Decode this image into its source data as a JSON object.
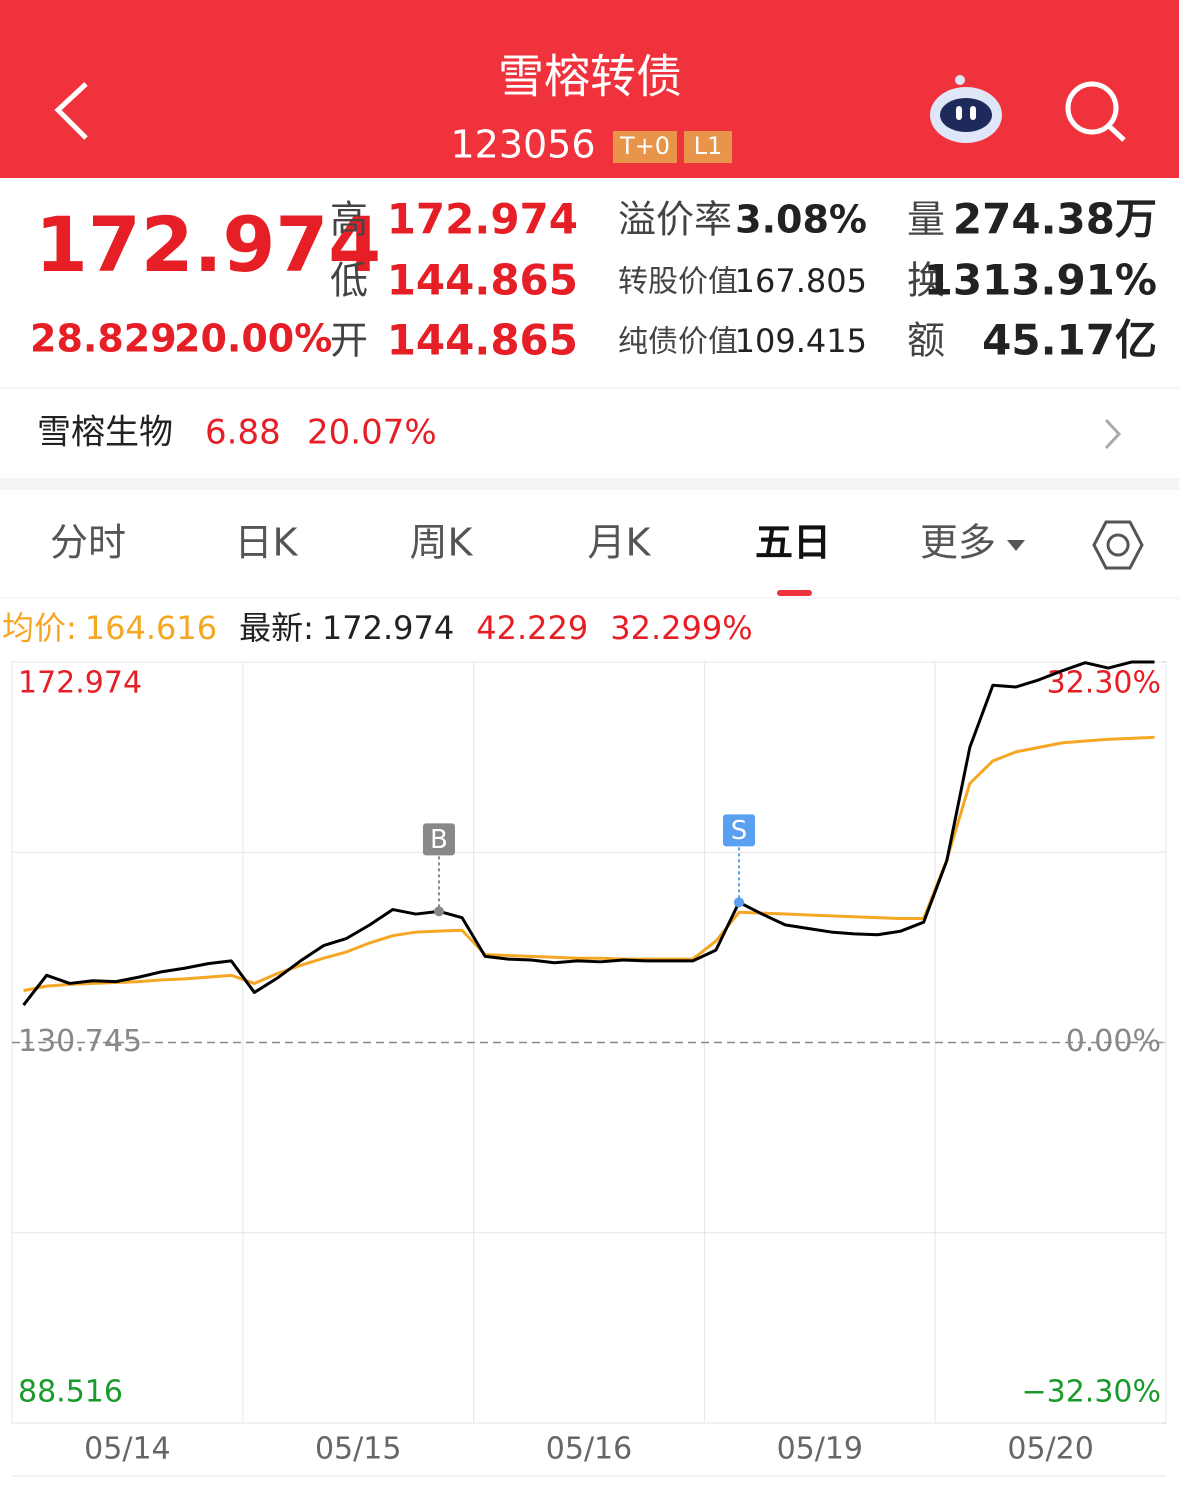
{
  "header": {
    "title": "雪榕转债",
    "code": "123056",
    "badges": [
      "T+0",
      "L1"
    ]
  },
  "quote": {
    "price": "172.974",
    "change": "28.829",
    "change_pct": "20.00%",
    "stats": [
      {
        "label": "高",
        "value": "172.974"
      },
      {
        "label": "低",
        "value": "144.865"
      },
      {
        "label": "开",
        "value": "144.865"
      }
    ],
    "metrics": [
      {
        "label": "溢价率",
        "value": "3.08%"
      },
      {
        "label": "转股价值",
        "value": "167.805"
      },
      {
        "label": "纯债价值",
        "value": "109.415"
      }
    ],
    "volume": [
      {
        "label": "量",
        "value": "274.38万"
      },
      {
        "label": "换",
        "value": "1313.91%"
      },
      {
        "label": "额",
        "value": "45.17亿"
      }
    ]
  },
  "stock": {
    "name": "雪榕生物",
    "price": "6.88",
    "change_pct": "20.07%"
  },
  "tabs": [
    "分时",
    "日K",
    "周K",
    "月K",
    "五日",
    "更多"
  ],
  "legend": {
    "avg_label": "均价:",
    "avg": "164.616",
    "latest_label": "最新:",
    "latest": "172.974",
    "change": "42.229",
    "change_pct": "32.299%"
  },
  "chart_data": {
    "type": "line",
    "categories": [
      null,
      null,
      null,
      null,
      null,
      "05/14",
      null,
      null,
      null,
      null,
      null,
      null,
      null,
      null,
      null,
      "05/15",
      null,
      null,
      null,
      null,
      null,
      null,
      null,
      null,
      null,
      "05/16",
      null,
      null,
      null,
      null,
      null,
      null,
      null,
      null,
      null,
      "05/19",
      null,
      null,
      null,
      null,
      null,
      null,
      null,
      null,
      null,
      "05/20",
      null,
      null,
      null,
      null
    ],
    "series": [
      {
        "color": "#000000",
        "values": [
          134.9,
          138.2,
          137.3,
          137.6,
          137.5,
          138.0,
          138.6,
          139.0,
          139.5,
          139.8,
          136.3,
          137.9,
          139.8,
          141.5,
          142.3,
          143.8,
          145.5,
          145.0,
          145.3,
          144.6,
          140.3,
          140.0,
          139.9,
          139.6,
          139.8,
          139.7,
          139.9,
          139.8,
          139.8,
          139.8,
          141.0,
          146.3,
          145.0,
          143.8,
          143.4,
          143.0,
          142.8,
          142.7,
          143.1,
          144.1,
          150.9,
          163.5,
          170.4,
          170.2,
          171.0,
          172.0,
          172.9,
          172.3,
          172.97,
          172.974
        ]
      },
      {
        "color": "#f5a623",
        "values": [
          136.5,
          137.0,
          137.2,
          137.3,
          137.4,
          137.5,
          137.7,
          137.8,
          138.0,
          138.2,
          137.3,
          138.4,
          139.3,
          140.1,
          140.8,
          141.8,
          142.6,
          143.0,
          143.1,
          143.2,
          140.5,
          140.4,
          140.3,
          140.2,
          140.1,
          140.1,
          140.0,
          140.0,
          140.0,
          140.0,
          142.0,
          145.2,
          145.1,
          145.0,
          144.9,
          144.8,
          144.7,
          144.6,
          144.5,
          144.5,
          151.0,
          159.5,
          162.0,
          163.0,
          163.5,
          164.0,
          164.2,
          164.4,
          164.5,
          164.616
        ]
      }
    ],
    "ylim": [
      88.516,
      172.974
    ],
    "yticks": [
      172.974,
      130.745,
      88.516
    ],
    "y2lim": [
      -32.3,
      32.3
    ],
    "y2ticks": [
      {
        "value": 32.3,
        "label": "32.30%"
      },
      {
        "value": 0,
        "label": "0.00%"
      },
      {
        "value": -32.3,
        "label": "−32.30%"
      }
    ],
    "markers": [
      {
        "label": "B",
        "at": 18
      },
      {
        "label": "S",
        "at": 31
      }
    ]
  }
}
